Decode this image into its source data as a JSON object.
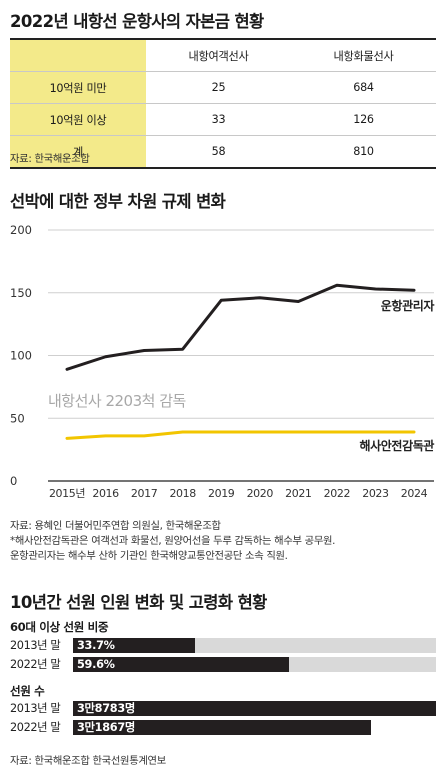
{
  "table_section": {
    "title": "2022년 내항선 운항사의 자본금 현황",
    "columns": [
      "",
      "내항여객선사",
      "내항화물선사"
    ],
    "rows": [
      {
        "label": "10억원 미만",
        "passenger": "25",
        "cargo": "684"
      },
      {
        "label": "10억원 이상",
        "passenger": "33",
        "cargo": "126"
      },
      {
        "label": "계",
        "passenger": "58",
        "cargo": "810"
      }
    ],
    "source": "자료: 한국해운조합"
  },
  "chart_section": {
    "title": "선박에 대한 정부 차원 규제 변화",
    "annotation": "내항선사 2203척 감독",
    "notes": [
      "자료: 용혜인 더불어민주연합 의원실, 한국해운조합",
      "*해사안전감독관은 여객선과 화물선, 원양어선을 두루 감독하는 해수부 공무원.",
      "운항관리자는 해수부 산하 기관인 한국해양교통안전공단 소속 직원."
    ]
  },
  "chart_data": {
    "type": "line",
    "title": "선박에 대한 정부 차원 규제 변화",
    "xlabel": "",
    "ylabel": "",
    "x": [
      "2015년",
      "2016",
      "2017",
      "2018",
      "2019",
      "2020",
      "2021",
      "2022",
      "2023",
      "2024"
    ],
    "ylim": [
      0,
      200
    ],
    "yticks": [
      0,
      50,
      100,
      150,
      200
    ],
    "grid": true,
    "series": [
      {
        "name": "운항관리자",
        "color": "#231f20",
        "values": [
          89,
          99,
          104,
          105,
          144,
          146,
          143,
          156,
          153,
          152
        ]
      },
      {
        "name": "해사안전감독관",
        "color": "#f2c500",
        "values": [
          34,
          36,
          36,
          39,
          39,
          39,
          39,
          39,
          39,
          39
        ]
      }
    ]
  },
  "bars_section": {
    "title": "10년간 선원 인원 변화 및 고령화 현황",
    "groups": [
      {
        "heading": "60대 이상 선원 비중",
        "bars": [
          {
            "label": "2013년 말",
            "value_text": "33.7%",
            "fraction": 0.337
          },
          {
            "label": "2022년 말",
            "value_text": "59.6%",
            "fraction": 0.596
          }
        ]
      },
      {
        "heading": "선원 수",
        "bars": [
          {
            "label": "2013년 말",
            "value_text": "3만8783명",
            "fraction": 1.0
          },
          {
            "label": "2022년 말",
            "value_text": "3만1867명",
            "fraction": 0.822
          }
        ]
      }
    ],
    "source": "자료: 한국해운조합 한국선원통계연보"
  },
  "colors": {
    "accent_yellow": "#f2c500",
    "table_yellow": "#f3ea8a",
    "dark": "#231f20",
    "track": "#d9d9d9"
  }
}
